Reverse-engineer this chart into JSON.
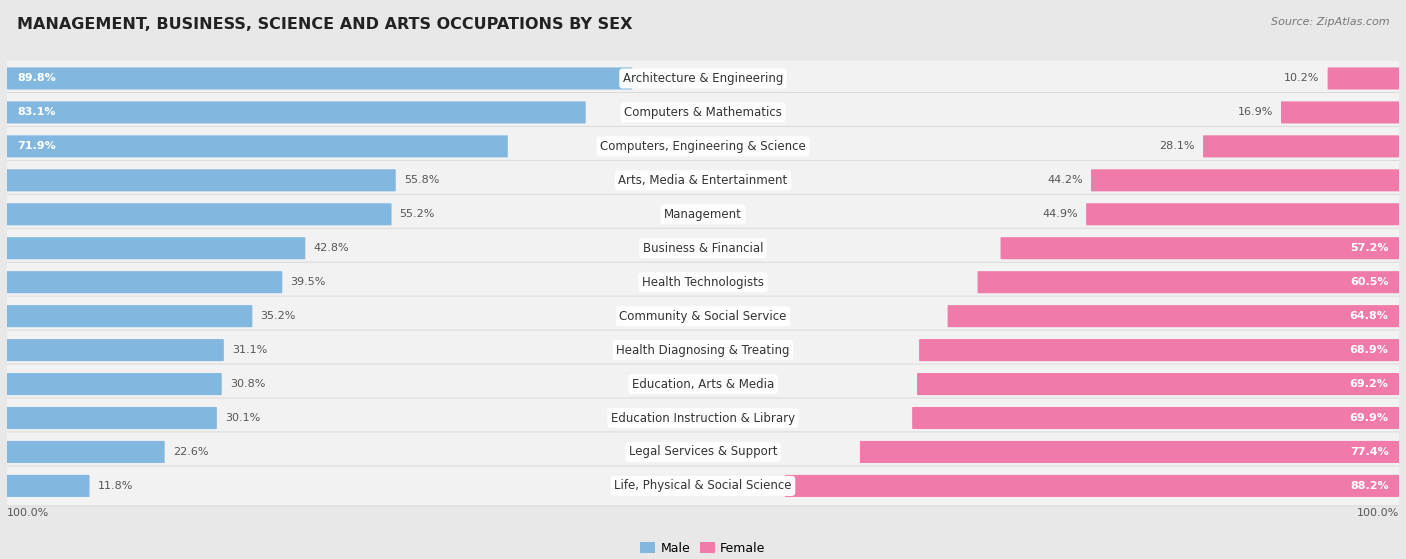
{
  "title": "MANAGEMENT, BUSINESS, SCIENCE AND ARTS OCCUPATIONS BY SEX",
  "source": "Source: ZipAtlas.com",
  "categories": [
    "Architecture & Engineering",
    "Computers & Mathematics",
    "Computers, Engineering & Science",
    "Arts, Media & Entertainment",
    "Management",
    "Business & Financial",
    "Health Technologists",
    "Community & Social Service",
    "Health Diagnosing & Treating",
    "Education, Arts & Media",
    "Education Instruction & Library",
    "Legal Services & Support",
    "Life, Physical & Social Science"
  ],
  "male_pct": [
    89.8,
    83.1,
    71.9,
    55.8,
    55.2,
    42.8,
    39.5,
    35.2,
    31.1,
    30.8,
    30.1,
    22.6,
    11.8
  ],
  "female_pct": [
    10.2,
    16.9,
    28.1,
    44.2,
    44.9,
    57.2,
    60.5,
    64.8,
    68.9,
    69.2,
    69.9,
    77.4,
    88.2
  ],
  "male_color": "#82b8e0",
  "female_color": "#f07aaa",
  "bg_color": "#e8e8e8",
  "row_bg_color": "#f2f2f2",
  "white_label_bg": "#ffffff",
  "title_fontsize": 11.5,
  "label_fontsize": 8.5,
  "pct_fontsize": 8.0,
  "source_fontsize": 8.0
}
